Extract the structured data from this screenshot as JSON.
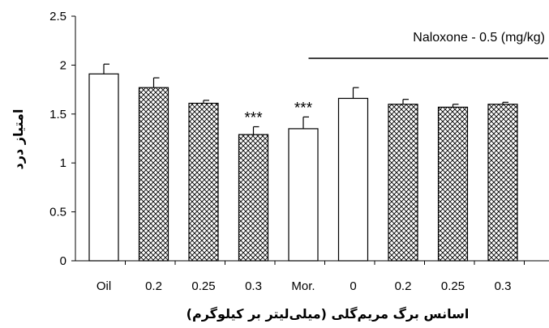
{
  "chart_data": {
    "type": "bar",
    "title": "",
    "xlabel": "اسانس برگ مریم‌گلی (میلی‌لیتر بر کیلوگرم)",
    "ylabel": "امتیاز درد",
    "ylim": [
      0,
      2.5
    ],
    "yticks": [
      "0",
      "0.5",
      "1",
      "1.5",
      "2",
      "2.5"
    ],
    "ytick_values": [
      0,
      0.5,
      1,
      1.5,
      2,
      2.5
    ],
    "grid": false,
    "categories": [
      "Oil",
      "0.2",
      "0.25",
      "0.3",
      "Mor.",
      "0",
      "0.2",
      "0.25",
      "0.3"
    ],
    "values": [
      1.91,
      1.77,
      1.61,
      1.29,
      1.35,
      1.66,
      1.6,
      1.57,
      1.6
    ],
    "errors": [
      0.1,
      0.1,
      0.03,
      0.08,
      0.12,
      0.11,
      0.05,
      0.03,
      0.02
    ],
    "fills": [
      "white",
      "crosshatch",
      "crosshatch",
      "crosshatch",
      "white",
      "white",
      "crosshatch",
      "crosshatch",
      "crosshatch"
    ],
    "annotations": [
      "",
      "",
      "",
      "***",
      "***",
      "",
      "",
      "",
      ""
    ],
    "bracket": {
      "label": "Naloxone - 0.5 (mg/kg)",
      "from_category": 5,
      "to_category": 8
    },
    "colors": {
      "bar_stroke": "#000000",
      "hatch": "#000000",
      "background": "#ffffff"
    }
  }
}
